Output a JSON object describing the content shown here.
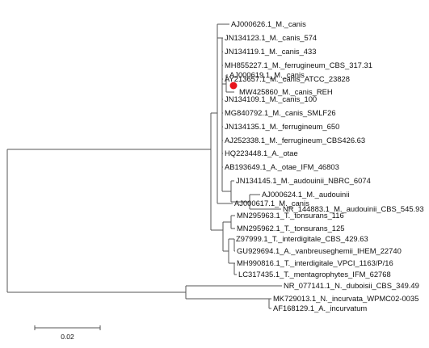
{
  "tree": {
    "leaves": [
      "AJ000626.1_M._canis",
      "JN134123.1_M._canis_574",
      "JN134119.1_M._canis_433",
      "MH855227.1_M._ferrugineum_CBS_317.31",
      "AY213657.1_M._canis_ATCC_23828",
      "AJ000619.1_M._canis",
      "MW425860_M._canis_REH",
      "JN134109.1_M._canis_100",
      "MG840792.1_M._canis_SMLF26",
      "JN134135.1_M._ferrugineum_650",
      "AJ252338.1_M._ferrugineum_CBS426.63",
      "HQ223448.1_A._otae",
      "AB193649.1_A._otae_IFM_46803",
      "JN134145.1_M._audouinii_NBRC_6074",
      "AJ000624.1_M._audouinii",
      "NR_144883.1_M._audouinii_CBS_545.93",
      "AJ000617.1_M._canis",
      "MN295963.1_T._tonsurans_116",
      "MN295962.1_T._tonsurans_125",
      "Z97999.1_T._interdigitale_CBS_429.63",
      "GU929694.1_A._vanbreuseghemii_IHEM_22740",
      "MH990816.1_T._interdigitale_VPCI_1163/P/16",
      "LC317435.1_T._mentagrophytes_IFM_62768",
      "NR_077141.1_N._duboisii_CBS_349.49",
      "MK729013.1_N._incurvata_WPMC02-0035",
      "AF168129.1_A._incurvatum"
    ],
    "highlighted_leaf": "MW425860_M._canis_REH",
    "marker_color": "#e8141c",
    "branch_color": "#555555"
  },
  "scale_bar": {
    "label": "0.02"
  }
}
